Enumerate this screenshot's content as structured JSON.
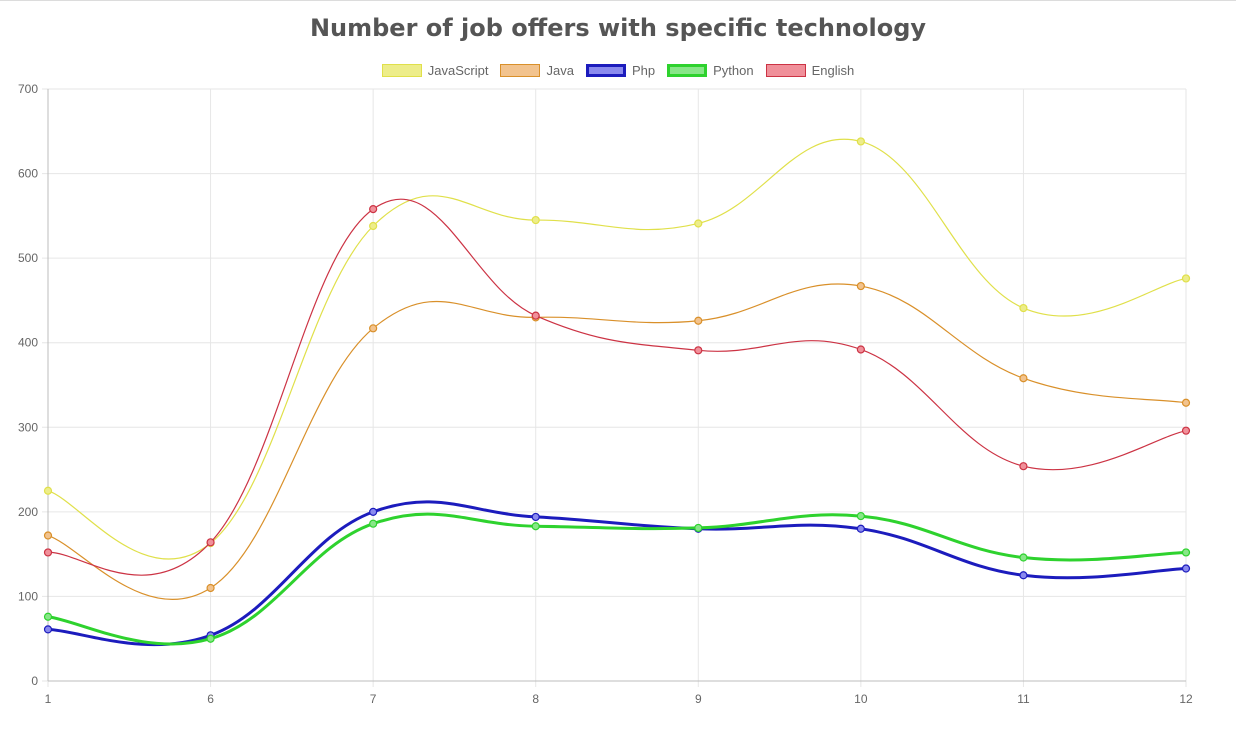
{
  "chart_data": {
    "type": "line",
    "title": "Number of job offers with specific technology",
    "xlabel": "",
    "ylabel": "",
    "categories": [
      "1",
      "6",
      "7",
      "8",
      "9",
      "10",
      "11",
      "12"
    ],
    "ylim": [
      0,
      700
    ],
    "yticks": [
      "0",
      "100",
      "200",
      "300",
      "400",
      "500",
      "600",
      "700"
    ],
    "grid": true,
    "legend_position": "top",
    "series": [
      {
        "name": "JavaScript",
        "values": [
          225,
          163,
          538,
          545,
          541,
          638,
          441,
          476
        ],
        "color": "#e0e04a",
        "fill": "#eded8a",
        "bold": false
      },
      {
        "name": "Java",
        "values": [
          172,
          110,
          417,
          430,
          426,
          467,
          358,
          329
        ],
        "color": "#d9902a",
        "fill": "#f2c38e",
        "bold": false
      },
      {
        "name": "Php",
        "values": [
          61,
          54,
          200,
          194,
          180,
          180,
          125,
          133
        ],
        "color": "#1c1cbd",
        "fill": "#8a8aee",
        "bold": true
      },
      {
        "name": "Python",
        "values": [
          76,
          50,
          186,
          183,
          181,
          195,
          146,
          152
        ],
        "color": "#2ed22e",
        "fill": "#88e688",
        "bold": true
      },
      {
        "name": "English",
        "values": [
          152,
          164,
          558,
          432,
          391,
          392,
          254,
          296
        ],
        "color": "#cc3344",
        "fill": "#f0909a",
        "bold": false
      }
    ]
  }
}
